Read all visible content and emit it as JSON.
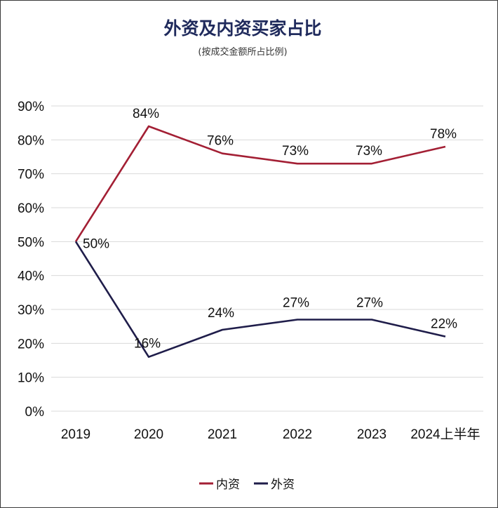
{
  "chart_data": {
    "type": "line",
    "title": "外资及内资买家占比",
    "subtitle": "(按成交金额所占比例)",
    "categories": [
      "2019",
      "2020",
      "2021",
      "2022",
      "2023",
      "2024上半年"
    ],
    "series": [
      {
        "name": "内资",
        "color": "#a31f34",
        "values": [
          50,
          84,
          76,
          73,
          73,
          78
        ],
        "labels": [
          "50%",
          "84%",
          "76%",
          "73%",
          "73%",
          "78%"
        ]
      },
      {
        "name": "外资",
        "color": "#1f1d4a",
        "values": [
          50,
          16,
          24,
          27,
          27,
          22
        ],
        "labels": [
          "",
          "16%",
          "24%",
          "27%",
          "27%",
          "22%"
        ]
      }
    ],
    "yticks": [
      "0%",
      "10%",
      "20%",
      "30%",
      "40%",
      "50%",
      "60%",
      "70%",
      "80%",
      "90%"
    ],
    "ylim": [
      0,
      90
    ],
    "grid": true,
    "legend_position": "bottom"
  }
}
